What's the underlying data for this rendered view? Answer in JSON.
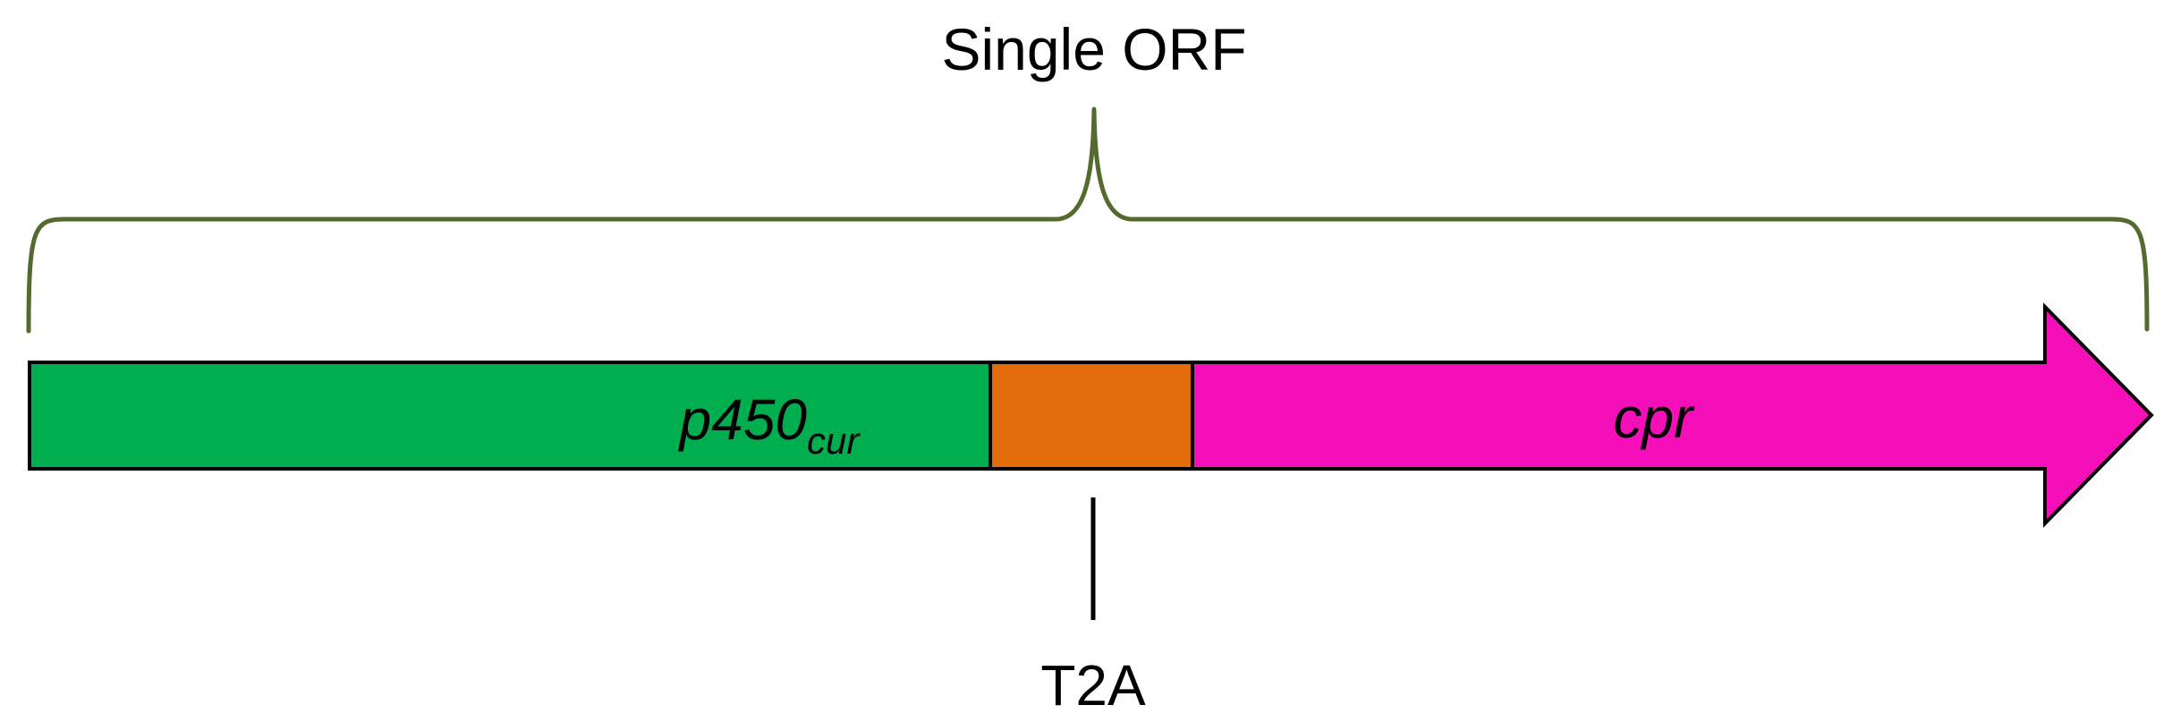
{
  "title": "Single ORF",
  "segments": [
    {
      "id": "p450",
      "label": "p450",
      "subscript": "cur",
      "color": "#00AE4F"
    },
    {
      "id": "t2a",
      "label": "T2A",
      "color": "#E36C0A"
    },
    {
      "id": "cpr",
      "label": "cpr",
      "color": "#F50FB9"
    }
  ],
  "bracket_color": "#536B2F",
  "outline_color": "#000000"
}
